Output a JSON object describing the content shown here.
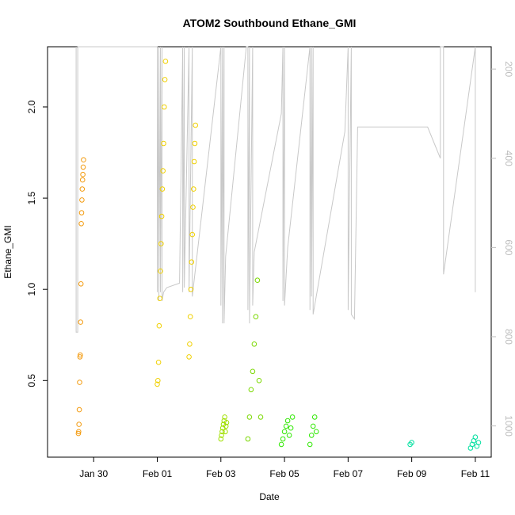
{
  "chart_data": {
    "type": "scatter",
    "title": "ATOM2 Southbound Ethane_GMI",
    "xlabel": "Date",
    "ylabel": "Ethane_GMI",
    "x_ticks": [
      "Jan 30",
      "Feb 01",
      "Feb 03",
      "Feb 05",
      "Feb 07",
      "Feb 09",
      "Feb 11"
    ],
    "x_tick_days": [
      1,
      3,
      5,
      7,
      9,
      11,
      13
    ],
    "xlim_days": [
      -0.45,
      13.5
    ],
    "ylim": [
      0.08,
      2.33
    ],
    "y_ticks": [
      0.5,
      1.0,
      1.5,
      2.0
    ],
    "y_tick_labels": [
      "0.5",
      "1.0",
      "1.5",
      "2.0"
    ],
    "right_axis": {
      "ylim": [
        1070,
        150
      ],
      "ticks": [
        200,
        400,
        600,
        800,
        1000
      ],
      "tick_labels": [
        "200",
        "400",
        "600",
        "800",
        "1000"
      ],
      "color": "#bdbdbd"
    },
    "pressure_trace": [
      [
        0.45,
        150
      ],
      [
        0.45,
        790
      ],
      [
        0.5,
        790
      ],
      [
        0.5,
        150
      ],
      [
        3.0,
        150
      ],
      [
        3.0,
        700
      ],
      [
        3.05,
        150
      ],
      [
        3.05,
        720
      ],
      [
        3.1,
        150
      ],
      [
        3.1,
        700
      ],
      [
        3.15,
        150
      ],
      [
        3.15,
        720
      ],
      [
        3.2,
        700
      ],
      [
        3.3,
        690
      ],
      [
        3.7,
        680
      ],
      [
        3.8,
        150
      ],
      [
        3.8,
        700
      ],
      [
        3.85,
        150
      ],
      [
        3.85,
        690
      ],
      [
        4.0,
        150
      ],
      [
        4.0,
        700
      ],
      [
        4.1,
        150
      ],
      [
        4.1,
        710
      ],
      [
        5.0,
        150
      ],
      [
        5.0,
        730
      ],
      [
        5.05,
        150
      ],
      [
        5.05,
        770
      ],
      [
        5.1,
        150
      ],
      [
        5.1,
        770
      ],
      [
        5.15,
        620
      ],
      [
        5.8,
        100
      ],
      [
        5.85,
        150
      ],
      [
        5.85,
        740
      ],
      [
        5.9,
        150
      ],
      [
        5.9,
        770
      ],
      [
        6.0,
        150
      ],
      [
        6.0,
        730
      ],
      [
        6.05,
        610
      ],
      [
        6.9,
        300
      ],
      [
        6.95,
        150
      ],
      [
        6.95,
        720
      ],
      [
        7.0,
        150
      ],
      [
        7.0,
        730
      ],
      [
        7.1,
        600
      ],
      [
        7.8,
        150
      ],
      [
        7.8,
        740
      ],
      [
        7.85,
        150
      ],
      [
        7.85,
        710
      ],
      [
        7.9,
        150
      ],
      [
        7.9,
        750
      ],
      [
        8.9,
        340
      ],
      [
        9.0,
        150
      ],
      [
        9.0,
        740
      ],
      [
        9.1,
        150
      ],
      [
        9.1,
        750
      ],
      [
        9.2,
        760
      ],
      [
        9.3,
        330
      ],
      [
        11.5,
        330
      ],
      [
        11.9,
        400
      ],
      [
        11.9,
        150
      ],
      [
        12.0,
        150
      ],
      [
        12.0,
        660
      ],
      [
        13.0,
        150
      ],
      [
        13.0,
        700
      ]
    ],
    "series": [
      {
        "color": "#f39c12",
        "points": [
          [
            0.52,
            0.21
          ],
          [
            0.53,
            0.22
          ],
          [
            0.54,
            0.26
          ],
          [
            0.55,
            0.34
          ],
          [
            0.56,
            0.49
          ],
          [
            0.57,
            0.63
          ],
          [
            0.58,
            0.64
          ],
          [
            0.59,
            0.82
          ],
          [
            0.6,
            1.03
          ],
          [
            0.61,
            1.36
          ],
          [
            0.62,
            1.42
          ],
          [
            0.63,
            1.49
          ],
          [
            0.64,
            1.55
          ],
          [
            0.65,
            1.6
          ],
          [
            0.66,
            1.63
          ],
          [
            0.67,
            1.67
          ],
          [
            0.68,
            1.71
          ]
        ]
      },
      {
        "color": "#f0d000",
        "points": [
          [
            3.0,
            0.48
          ],
          [
            3.02,
            0.5
          ],
          [
            3.04,
            0.6
          ],
          [
            3.06,
            0.8
          ],
          [
            3.08,
            0.95
          ],
          [
            3.1,
            1.1
          ],
          [
            3.12,
            1.25
          ],
          [
            3.14,
            1.4
          ],
          [
            3.16,
            1.55
          ],
          [
            3.18,
            1.65
          ],
          [
            3.2,
            1.8
          ],
          [
            3.22,
            2.0
          ],
          [
            3.24,
            2.15
          ],
          [
            3.26,
            2.25
          ],
          [
            4.0,
            0.63
          ],
          [
            4.02,
            0.7
          ],
          [
            4.04,
            0.85
          ],
          [
            4.06,
            1.0
          ],
          [
            4.08,
            1.15
          ],
          [
            4.1,
            1.3
          ],
          [
            4.12,
            1.45
          ],
          [
            4.14,
            1.55
          ],
          [
            4.16,
            1.7
          ],
          [
            4.18,
            1.8
          ],
          [
            4.2,
            1.9
          ]
        ]
      },
      {
        "color": "#a0e000",
        "points": [
          [
            5.0,
            0.18
          ],
          [
            5.02,
            0.2
          ],
          [
            5.04,
            0.22
          ],
          [
            5.06,
            0.24
          ],
          [
            5.08,
            0.26
          ],
          [
            5.1,
            0.28
          ],
          [
            5.12,
            0.3
          ],
          [
            5.14,
            0.22
          ],
          [
            5.16,
            0.25
          ],
          [
            5.18,
            0.27
          ]
        ]
      },
      {
        "color": "#7ad800",
        "points": [
          [
            5.85,
            0.18
          ],
          [
            5.9,
            0.3
          ],
          [
            5.95,
            0.45
          ],
          [
            6.0,
            0.55
          ],
          [
            6.05,
            0.7
          ],
          [
            6.1,
            0.85
          ],
          [
            6.15,
            1.05
          ],
          [
            6.2,
            0.5
          ],
          [
            6.25,
            0.3
          ]
        ]
      },
      {
        "color": "#2ee800",
        "points": [
          [
            6.9,
            0.15
          ],
          [
            6.95,
            0.18
          ],
          [
            7.0,
            0.22
          ],
          [
            7.05,
            0.25
          ],
          [
            7.1,
            0.28
          ],
          [
            7.15,
            0.2
          ],
          [
            7.2,
            0.24
          ],
          [
            7.25,
            0.3
          ],
          [
            7.8,
            0.15
          ],
          [
            7.85,
            0.2
          ],
          [
            7.9,
            0.25
          ],
          [
            7.95,
            0.3
          ],
          [
            8.0,
            0.22
          ]
        ]
      },
      {
        "color": "#00e0a0",
        "points": [
          [
            10.95,
            0.15
          ],
          [
            11.0,
            0.16
          ],
          [
            12.85,
            0.13
          ],
          [
            12.9,
            0.15
          ],
          [
            12.95,
            0.17
          ],
          [
            13.0,
            0.19
          ],
          [
            13.05,
            0.14
          ],
          [
            13.1,
            0.16
          ]
        ]
      }
    ]
  }
}
